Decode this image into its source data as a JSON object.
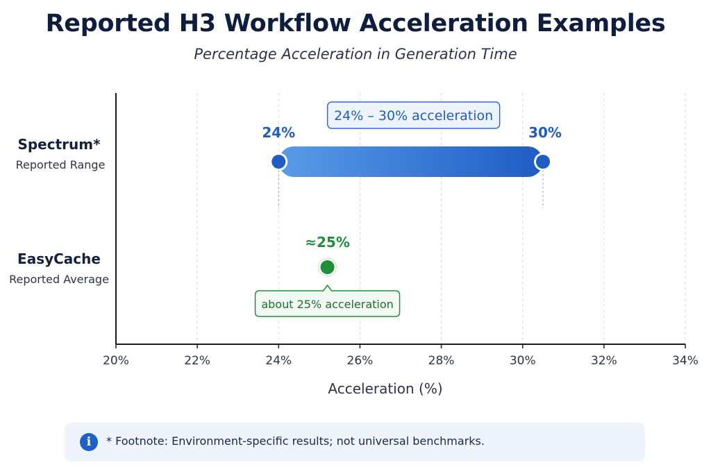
{
  "chart_data": {
    "type": "range",
    "title": "Reported H3 Workflow Acceleration Examples",
    "subtitle": "Percentage Acceleration in Generation Time",
    "xlabel": "Acceleration (%)",
    "xlim": [
      20,
      34
    ],
    "xticks": [
      "20%",
      "22%",
      "24%",
      "26%",
      "28%",
      "30%",
      "32%",
      "34%"
    ],
    "xtick_values": [
      20,
      22,
      24,
      26,
      28,
      30,
      32,
      34
    ],
    "grid": "vertical-dashed",
    "series": [
      {
        "name": "Spectrum*",
        "sublabel": "Reported Range",
        "kind": "range",
        "start": 24,
        "end": 30.5,
        "start_label": "24%",
        "end_label": "30%",
        "callout": "24% – 30% acceleration",
        "color": "#2a6dd2"
      },
      {
        "name": "EasyCache",
        "sublabel": "Reported Average",
        "kind": "point",
        "value": 25.2,
        "value_label": "≈25%",
        "callout": "about 25% acceleration",
        "color": "#1f8f3a"
      }
    ]
  },
  "footnote": {
    "icon": "info-icon",
    "text": "* Footnote: Environment-specific results; not universal benchmarks."
  },
  "colors": {
    "title": "#0f1e3d",
    "range_light": "#5a9be8",
    "range_dark": "#1f5cc4",
    "point": "#1f8f3a",
    "axis": "#1c1c1c",
    "grid": "#d5d9e0"
  }
}
